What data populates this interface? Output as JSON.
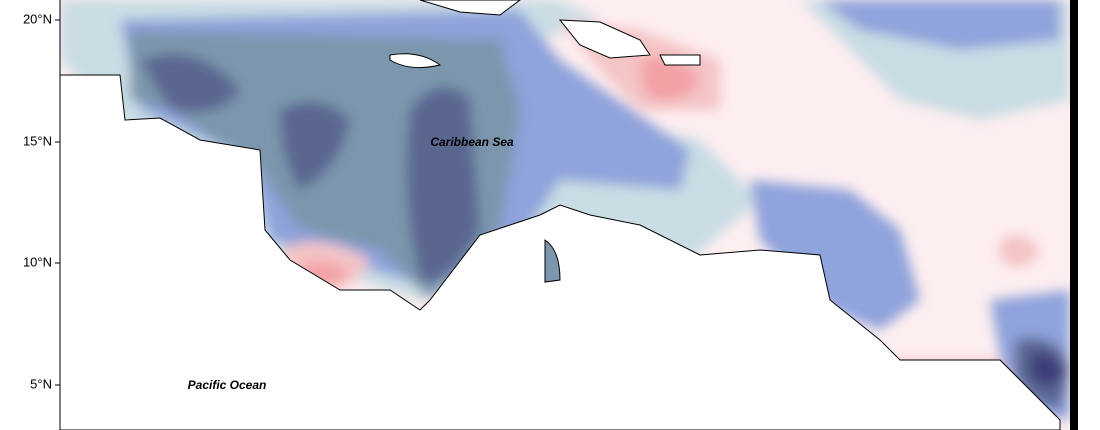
{
  "axis": {
    "lat_labels": [
      "20°N",
      "15°N",
      "10°N",
      "5°N"
    ]
  },
  "labels": {
    "sea": "Caribbean Sea",
    "ocean": "Pacific Ocean"
  }
}
